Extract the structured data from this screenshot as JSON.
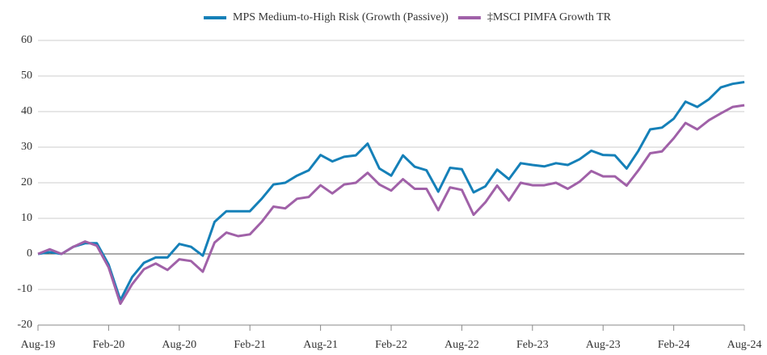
{
  "chart_data": {
    "type": "line",
    "categories": [
      "Aug-19",
      null,
      null,
      null,
      null,
      null,
      "Feb-20",
      null,
      null,
      null,
      null,
      null,
      "Aug-20",
      null,
      null,
      null,
      null,
      null,
      "Feb-21",
      null,
      null,
      null,
      null,
      null,
      "Aug-21",
      null,
      null,
      null,
      null,
      null,
      "Feb-22",
      null,
      null,
      null,
      null,
      null,
      "Aug-22",
      null,
      null,
      null,
      null,
      null,
      "Feb-23",
      null,
      null,
      null,
      null,
      null,
      "Aug-23",
      null,
      null,
      null,
      null,
      null,
      "Feb-24",
      null,
      null,
      null,
      null,
      null,
      "Aug-24"
    ],
    "series": [
      {
        "name": "MPS Medium-to-High Risk (Growth (Passive))",
        "color": "#1580b8",
        "values": [
          0,
          0.5,
          0,
          2,
          3,
          3,
          -3,
          -13,
          -6.5,
          -2.5,
          -1,
          -1,
          2.8,
          2,
          -0.5,
          9,
          12,
          12,
          12,
          15.5,
          19.5,
          20,
          22,
          23.5,
          27.8,
          26,
          27.3,
          27.7,
          31,
          24,
          22,
          27.7,
          24.5,
          23.5,
          17.5,
          24.2,
          23.8,
          17.3,
          19,
          23.7,
          21,
          25.5,
          25,
          24.6,
          25.5,
          25,
          26.6,
          29,
          27.8,
          27.7,
          24,
          29,
          35,
          35.5,
          38,
          42.8,
          41.3,
          43.5,
          46.8,
          47.8,
          48.3
        ]
      },
      {
        "name": "‡MSCI PIMFA Growth TR",
        "color": "#a061a8",
        "values": [
          0,
          1.3,
          0,
          2,
          3.5,
          2.3,
          -3.8,
          -14,
          -8.5,
          -4.3,
          -2.7,
          -4.5,
          -1.5,
          -2,
          -5,
          3.2,
          6,
          5,
          5.5,
          9,
          13.3,
          12.8,
          15.5,
          16,
          19.3,
          17,
          19.5,
          20,
          22.8,
          19.5,
          17.8,
          21,
          18.3,
          18.3,
          12.3,
          18.7,
          18,
          11,
          14.5,
          19.2,
          15,
          20,
          19.3,
          19.3,
          20,
          18.3,
          20.3,
          23.3,
          21.8,
          21.8,
          19.2,
          23.5,
          28.3,
          28.8,
          32.5,
          36.8,
          35,
          37.6,
          39.5,
          41.3,
          41.8
        ]
      }
    ],
    "ylim": [
      -20,
      60
    ],
    "yticks": [
      -20,
      -10,
      0,
      10,
      20,
      30,
      40,
      50,
      60
    ],
    "grid": true,
    "legend": "top"
  }
}
